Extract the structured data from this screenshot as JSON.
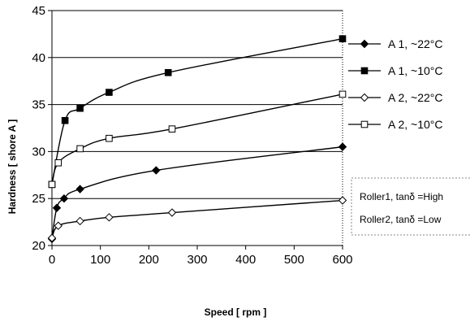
{
  "chart_data": {
    "type": "line",
    "title": "",
    "xlabel": "Speed  [ rpm ]",
    "ylabel": "Hardness  [ shore A ]",
    "xlim": [
      0,
      600
    ],
    "ylim": [
      20,
      45
    ],
    "x_ticks": [
      "0",
      "100",
      "200",
      "300",
      "400",
      "500",
      "600"
    ],
    "y_ticks": [
      "20",
      "25",
      "30",
      "35",
      "40",
      "45"
    ],
    "grid": "horizontal",
    "legend_position": "right",
    "series": [
      {
        "name": "A 1, ~22°C",
        "marker": "filled-diamond",
        "x": [
          0,
          10,
          25,
          58,
          215,
          600
        ],
        "y": [
          20.7,
          24,
          25,
          26,
          28,
          30.5
        ]
      },
      {
        "name": "A 1, ~10°C",
        "marker": "filled-square",
        "x": [
          0,
          27,
          58,
          118,
          240,
          600
        ],
        "y": [
          26.5,
          33.3,
          34.6,
          36.3,
          38.4,
          42
        ]
      },
      {
        "name": "A 2, ~22°C",
        "marker": "open-diamond",
        "x": [
          0,
          13,
          58,
          118,
          248,
          600
        ],
        "y": [
          20.8,
          22.1,
          22.6,
          23,
          23.5,
          24.8
        ]
      },
      {
        "name": "A 2, ~10°C",
        "marker": "open-square",
        "x": [
          0,
          13,
          58,
          118,
          248,
          600
        ],
        "y": [
          26.5,
          28.8,
          30.3,
          31.4,
          32.4,
          36.1
        ]
      }
    ],
    "annotations": [
      "Roller1,  tanδ  =High",
      "Roller2,  tanδ  =Low"
    ]
  }
}
